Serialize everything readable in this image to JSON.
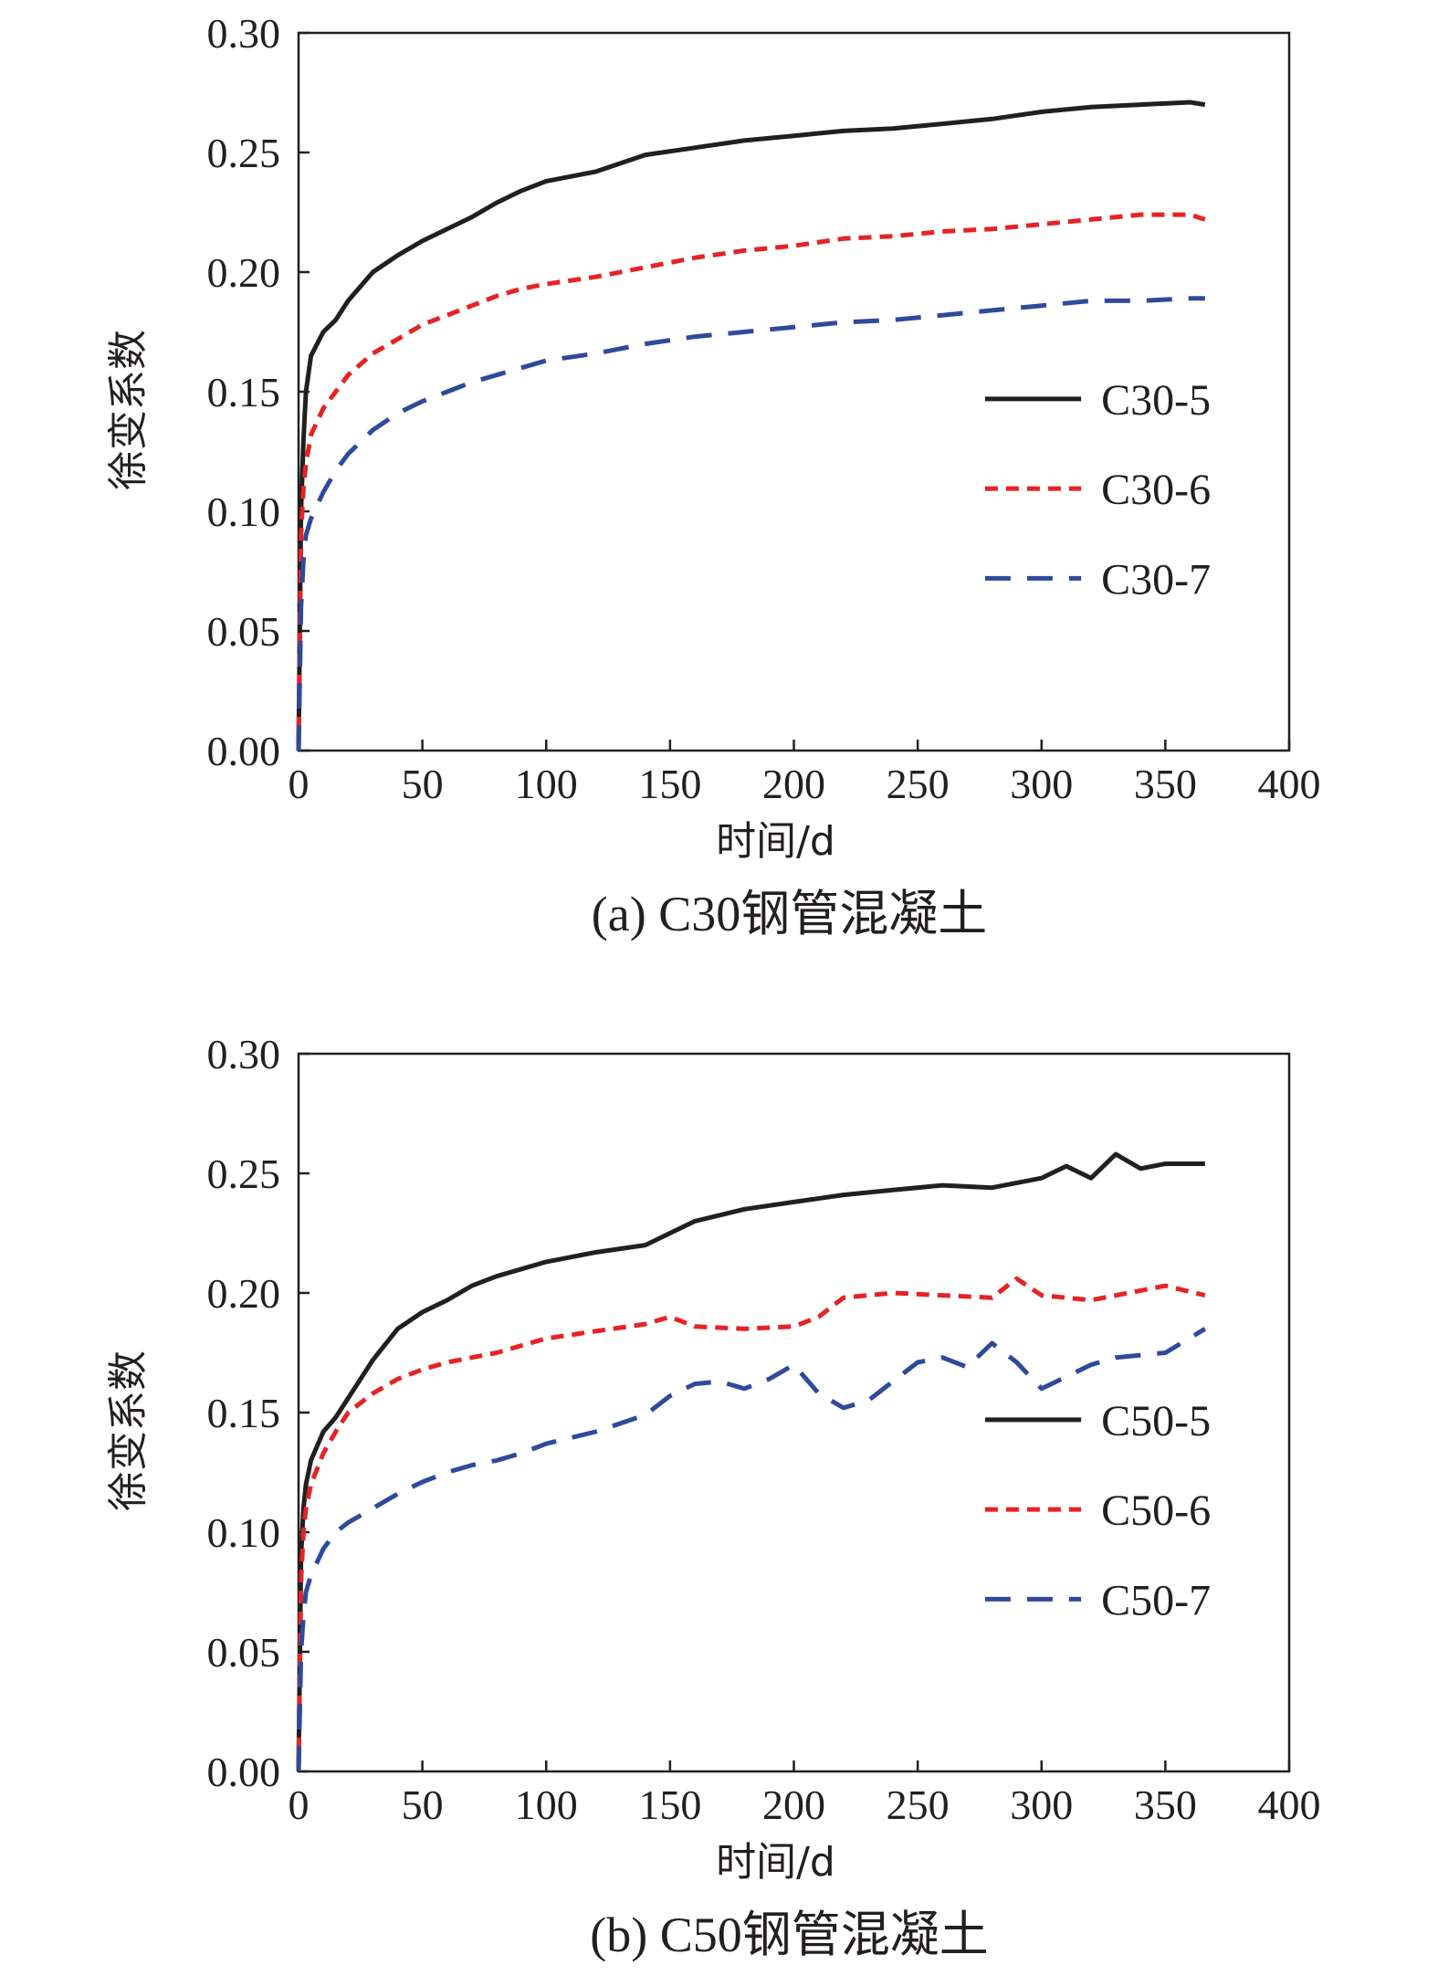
{
  "chart_data": [
    {
      "type": "line",
      "caption": "(a) C30钢管混凝土",
      "xlabel": "时间/d",
      "ylabel": "徐变系数",
      "xlim": [
        0,
        400
      ],
      "ylim": [
        0,
        0.3
      ],
      "xticks": [
        "0",
        "50",
        "100",
        "150",
        "200",
        "250",
        "300",
        "350",
        "400"
      ],
      "yticks": [
        "0.00",
        "0.05",
        "0.10",
        "0.15",
        "0.20",
        "0.25",
        "0.30"
      ],
      "grid": false,
      "legend_position": "bottom-right",
      "series": [
        {
          "name": "C30-5",
          "color": "#231f20",
          "style": "solid",
          "x": [
            0,
            1,
            2,
            3,
            5,
            10,
            15,
            20,
            30,
            40,
            50,
            60,
            70,
            80,
            90,
            100,
            120,
            140,
            160,
            180,
            200,
            220,
            240,
            260,
            280,
            300,
            320,
            340,
            360,
            366
          ],
          "y": [
            0,
            0.1,
            0.13,
            0.15,
            0.165,
            0.175,
            0.18,
            0.188,
            0.2,
            0.207,
            0.213,
            0.218,
            0.223,
            0.229,
            0.234,
            0.238,
            0.242,
            0.249,
            0.252,
            0.255,
            0.257,
            0.259,
            0.26,
            0.262,
            0.264,
            0.267,
            0.269,
            0.27,
            0.271,
            0.27
          ]
        },
        {
          "name": "C30-6",
          "color": "#e52325",
          "style": "short-dash",
          "x": [
            0,
            1,
            2,
            3,
            5,
            10,
            15,
            20,
            30,
            40,
            50,
            60,
            70,
            80,
            90,
            100,
            120,
            140,
            160,
            180,
            200,
            220,
            240,
            260,
            280,
            300,
            320,
            340,
            360,
            366
          ],
          "y": [
            0,
            0.09,
            0.11,
            0.12,
            0.132,
            0.143,
            0.15,
            0.157,
            0.166,
            0.172,
            0.178,
            0.182,
            0.186,
            0.19,
            0.193,
            0.195,
            0.198,
            0.202,
            0.206,
            0.209,
            0.211,
            0.214,
            0.215,
            0.217,
            0.218,
            0.22,
            0.222,
            0.224,
            0.224,
            0.222
          ]
        },
        {
          "name": "C30-7",
          "color": "#2e4a9b",
          "style": "long-dash",
          "x": [
            0,
            1,
            2,
            3,
            5,
            10,
            15,
            20,
            30,
            40,
            50,
            60,
            70,
            80,
            90,
            100,
            120,
            140,
            160,
            180,
            200,
            220,
            240,
            260,
            280,
            300,
            320,
            340,
            360,
            366
          ],
          "y": [
            0,
            0.06,
            0.08,
            0.09,
            0.097,
            0.108,
            0.117,
            0.124,
            0.134,
            0.141,
            0.146,
            0.15,
            0.154,
            0.157,
            0.16,
            0.163,
            0.166,
            0.17,
            0.173,
            0.175,
            0.177,
            0.179,
            0.18,
            0.182,
            0.184,
            0.186,
            0.188,
            0.188,
            0.189,
            0.189
          ]
        }
      ]
    },
    {
      "type": "line",
      "caption": "(b) C50钢管混凝土",
      "xlabel": "时间/d",
      "ylabel": "徐变系数",
      "xlim": [
        0,
        400
      ],
      "ylim": [
        0,
        0.3
      ],
      "xticks": [
        "0",
        "50",
        "100",
        "150",
        "200",
        "250",
        "300",
        "350",
        "400"
      ],
      "yticks": [
        "0.00",
        "0.05",
        "0.10",
        "0.15",
        "0.20",
        "0.25",
        "0.30"
      ],
      "grid": false,
      "legend_position": "bottom-right",
      "series": [
        {
          "name": "C50-5",
          "color": "#231f20",
          "style": "solid",
          "x": [
            0,
            1,
            2,
            3,
            5,
            10,
            15,
            20,
            30,
            40,
            50,
            60,
            70,
            80,
            90,
            100,
            120,
            140,
            160,
            180,
            200,
            220,
            240,
            260,
            280,
            300,
            310,
            320,
            330,
            340,
            350,
            366
          ],
          "y": [
            0,
            0.09,
            0.11,
            0.12,
            0.13,
            0.142,
            0.148,
            0.156,
            0.172,
            0.185,
            0.192,
            0.197,
            0.203,
            0.207,
            0.21,
            0.213,
            0.217,
            0.22,
            0.23,
            0.235,
            0.238,
            0.241,
            0.243,
            0.245,
            0.244,
            0.248,
            0.253,
            0.248,
            0.258,
            0.252,
            0.254,
            0.254
          ]
        },
        {
          "name": "C50-6",
          "color": "#e52325",
          "style": "short-dash",
          "x": [
            0,
            1,
            2,
            3,
            5,
            10,
            15,
            20,
            30,
            40,
            50,
            60,
            70,
            80,
            90,
            100,
            120,
            140,
            150,
            160,
            180,
            200,
            210,
            220,
            240,
            260,
            280,
            290,
            300,
            320,
            340,
            350,
            366
          ],
          "y": [
            0,
            0.08,
            0.1,
            0.11,
            0.12,
            0.133,
            0.142,
            0.15,
            0.158,
            0.164,
            0.168,
            0.171,
            0.173,
            0.175,
            0.178,
            0.181,
            0.184,
            0.187,
            0.19,
            0.186,
            0.185,
            0.186,
            0.19,
            0.198,
            0.2,
            0.199,
            0.198,
            0.206,
            0.199,
            0.197,
            0.201,
            0.203,
            0.199
          ]
        },
        {
          "name": "C50-7",
          "color": "#2e4a9b",
          "style": "long-dash",
          "x": [
            0,
            1,
            2,
            3,
            5,
            10,
            15,
            20,
            30,
            40,
            50,
            60,
            70,
            80,
            90,
            100,
            120,
            140,
            150,
            160,
            170,
            180,
            190,
            200,
            210,
            220,
            230,
            240,
            250,
            260,
            270,
            280,
            290,
            300,
            310,
            320,
            330,
            340,
            350,
            366
          ],
          "y": [
            0,
            0.05,
            0.065,
            0.075,
            0.082,
            0.093,
            0.1,
            0.104,
            0.11,
            0.116,
            0.121,
            0.125,
            0.128,
            0.13,
            0.133,
            0.137,
            0.142,
            0.149,
            0.157,
            0.162,
            0.163,
            0.16,
            0.164,
            0.17,
            0.158,
            0.152,
            0.155,
            0.163,
            0.171,
            0.173,
            0.169,
            0.179,
            0.171,
            0.16,
            0.165,
            0.17,
            0.173,
            0.174,
            0.175,
            0.185
          ]
        }
      ]
    }
  ]
}
